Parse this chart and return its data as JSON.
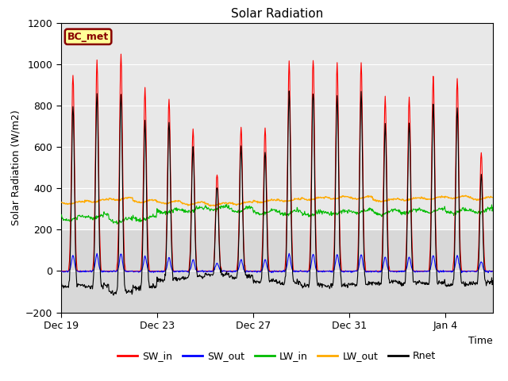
{
  "title": "Solar Radiation",
  "ylabel": "Solar Radiation (W/m2)",
  "xlabel": "Time",
  "ylim": [
    -200,
    1200
  ],
  "yticks": [
    -200,
    0,
    200,
    400,
    600,
    800,
    1000,
    1200
  ],
  "xtick_labels": [
    "Dec 19",
    "Dec 23",
    "Dec 27",
    "Dec 31",
    "Jan 4"
  ],
  "xtick_day_offsets": [
    0,
    4,
    8,
    12,
    16
  ],
  "station_label": "BC_met",
  "legend_entries": [
    "SW_in",
    "SW_out",
    "LW_in",
    "LW_out",
    "Rnet"
  ],
  "colors": {
    "SW_in": "#ff0000",
    "SW_out": "#0000ff",
    "LW_in": "#00bb00",
    "LW_out": "#ffaa00",
    "Rnet": "#000000"
  },
  "fig_bg_color": "#ffffff",
  "plot_bg_color": "#d8d8d8",
  "shaded_bg_color": "#e8e8e8",
  "n_days": 18,
  "dt_hours": 0.5,
  "sw_in_peaks": [
    950,
    1020,
    1050,
    880,
    830,
    690,
    480,
    700,
    690,
    1010,
    1020,
    1005,
    1000,
    840,
    845,
    950,
    930,
    570
  ],
  "lw_in_daily": [
    255,
    265,
    245,
    255,
    290,
    295,
    305,
    298,
    285,
    283,
    278,
    283,
    288,
    283,
    288,
    293,
    288,
    293
  ],
  "lw_out_daily": [
    330,
    340,
    350,
    338,
    333,
    328,
    323,
    328,
    338,
    343,
    350,
    355,
    355,
    342,
    348,
    353,
    357,
    352
  ]
}
